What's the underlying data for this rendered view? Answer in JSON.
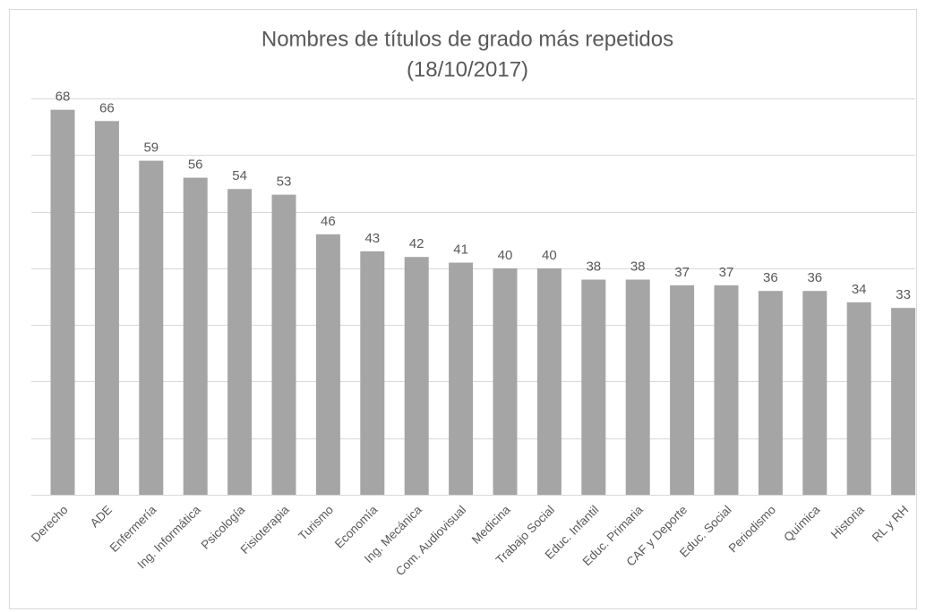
{
  "chart_data": {
    "type": "bar",
    "title": "Nombres de títulos de grado más repetidos",
    "subtitle": "(18/10/2017)",
    "categories": [
      "Derecho",
      "ADE",
      "Enfermería",
      "Ing. Informática",
      "Psicología",
      "Fisioterapia",
      "Turismo",
      "Economía",
      "Ing. Mecánica",
      "Com. Audiovisual",
      "Medicina",
      "Trabajo Social",
      "Educ. Infantil",
      "Educ. Primaria",
      "CAF y Deporte",
      "Educ. Social",
      "Periodismo",
      "Química",
      "Historia",
      "RL y RH"
    ],
    "values": [
      68,
      66,
      59,
      56,
      54,
      53,
      46,
      43,
      42,
      41,
      40,
      40,
      38,
      38,
      37,
      37,
      36,
      36,
      34,
      33
    ],
    "color": "#a5a5a5",
    "ylim": [
      0,
      70
    ],
    "yticks": [
      0,
      10,
      20,
      30,
      40,
      50,
      60,
      70
    ],
    "grid": true
  }
}
